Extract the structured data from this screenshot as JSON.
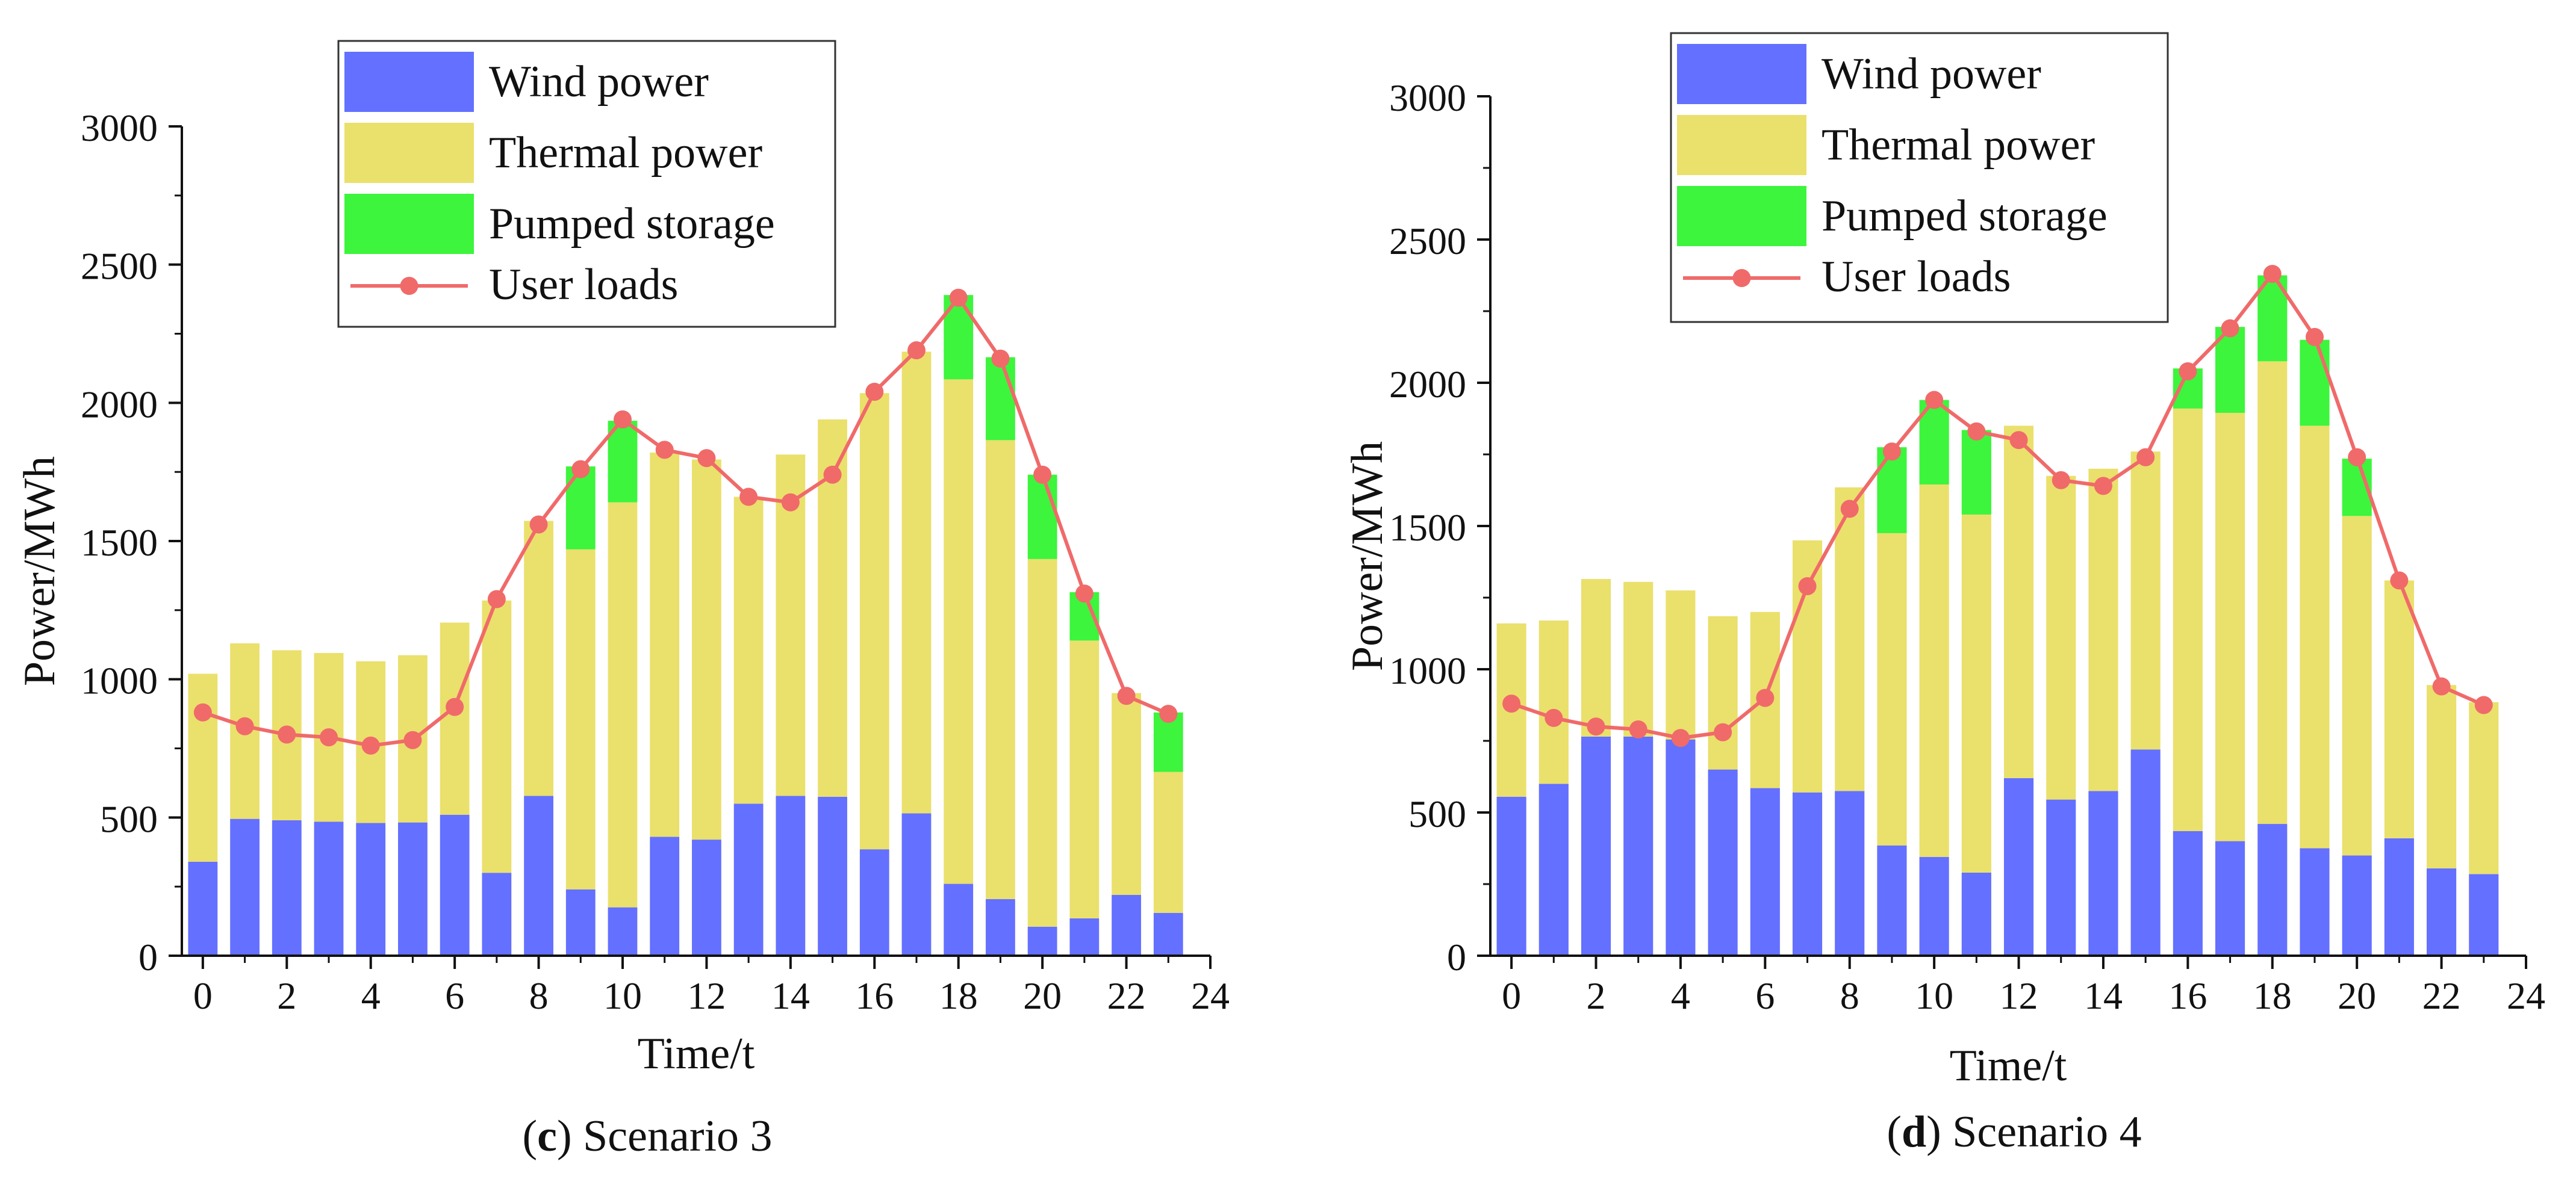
{
  "colors": {
    "wind": "#6470FF",
    "thermal": "#EAE06C",
    "pumped": "#3CF53C",
    "load": "#F06A6A",
    "axis": "#111111"
  },
  "chart_data": [
    {
      "id": "c",
      "type": "bar",
      "stacked": true,
      "caption_letter": "c",
      "caption_text": " Scenario 3",
      "xlabel": "Time/t",
      "ylabel": "Power/MWh",
      "xlim": [
        -0.5,
        24
      ],
      "ylim": [
        0,
        3000
      ],
      "xticks": [
        "0",
        "2",
        "4",
        "6",
        "8",
        "10",
        "12",
        "14",
        "16",
        "18",
        "20",
        "22",
        "24"
      ],
      "yticks": [
        "0",
        "500",
        "1000",
        "1500",
        "2000",
        "2500",
        "3000"
      ],
      "legend": [
        "Wind power",
        "Thermal power",
        "Pumped storage",
        "User loads"
      ],
      "legend_position": "top-center",
      "x": [
        0,
        1,
        2,
        3,
        4,
        5,
        6,
        7,
        8,
        9,
        10,
        11,
        12,
        13,
        14,
        15,
        16,
        17,
        18,
        19,
        20,
        21,
        22,
        23
      ],
      "series": [
        {
          "name": "Wind power",
          "values": [
            340,
            495,
            490,
            485,
            480,
            482,
            510,
            300,
            578,
            240,
            175,
            430,
            420,
            550,
            578,
            575,
            385,
            515,
            260,
            205,
            105,
            135,
            220,
            155
          ]
        },
        {
          "name": "Thermal power",
          "values": [
            680,
            635,
            615,
            610,
            585,
            605,
            695,
            985,
            995,
            1230,
            1465,
            1390,
            1375,
            1110,
            1235,
            1365,
            1650,
            1670,
            1825,
            1660,
            1330,
            1005,
            730,
            510
          ]
        },
        {
          "name": "Pumped storage",
          "values": [
            0,
            0,
            0,
            0,
            0,
            0,
            0,
            0,
            0,
            300,
            295,
            0,
            0,
            0,
            0,
            0,
            0,
            0,
            305,
            300,
            305,
            175,
            0,
            215
          ]
        },
        {
          "name": "User loads",
          "type": "line",
          "values": [
            880,
            830,
            800,
            790,
            760,
            780,
            900,
            1290,
            1560,
            1760,
            1940,
            1830,
            1800,
            1660,
            1640,
            1740,
            2040,
            2190,
            2380,
            2160,
            1740,
            1310,
            940,
            875
          ]
        }
      ]
    },
    {
      "id": "d",
      "type": "bar",
      "stacked": true,
      "caption_letter": "d",
      "caption_text": " Scenario 4",
      "xlabel": "Time/t",
      "ylabel": "Power/MWh",
      "xlim": [
        -0.5,
        24
      ],
      "ylim": [
        0,
        3000
      ],
      "xticks": [
        "0",
        "2",
        "4",
        "6",
        "8",
        "10",
        "12",
        "14",
        "16",
        "18",
        "20",
        "22",
        "24"
      ],
      "yticks": [
        "0",
        "500",
        "1000",
        "1500",
        "2000",
        "2500",
        "3000"
      ],
      "legend": [
        "Wind power",
        "Thermal power",
        "Pumped storage",
        "User loads"
      ],
      "legend_position": "top-center",
      "x": [
        0,
        1,
        2,
        3,
        4,
        5,
        6,
        7,
        8,
        9,
        10,
        11,
        12,
        13,
        14,
        15,
        16,
        17,
        18,
        19,
        20,
        21,
        22,
        23
      ],
      "series": [
        {
          "name": "Wind power",
          "values": [
            555,
            600,
            765,
            765,
            755,
            650,
            585,
            570,
            575,
            385,
            345,
            290,
            620,
            545,
            575,
            720,
            435,
            400,
            460,
            375,
            350,
            410,
            305,
            285
          ]
        },
        {
          "name": "Thermal power",
          "values": [
            605,
            570,
            550,
            540,
            520,
            535,
            615,
            880,
            1060,
            1090,
            1300,
            1250,
            1230,
            1130,
            1125,
            1040,
            1475,
            1495,
            1615,
            1475,
            1185,
            900,
            640,
            600
          ]
        },
        {
          "name": "Pumped storage",
          "values": [
            0,
            0,
            0,
            0,
            0,
            0,
            0,
            0,
            0,
            300,
            295,
            295,
            0,
            0,
            0,
            0,
            140,
            300,
            300,
            300,
            200,
            0,
            0,
            0
          ]
        },
        {
          "name": "User loads",
          "type": "line",
          "values": [
            880,
            830,
            800,
            790,
            760,
            780,
            900,
            1290,
            1560,
            1760,
            1940,
            1830,
            1800,
            1660,
            1640,
            1740,
            2040,
            2190,
            2380,
            2160,
            1740,
            1310,
            940,
            875
          ]
        }
      ]
    }
  ]
}
